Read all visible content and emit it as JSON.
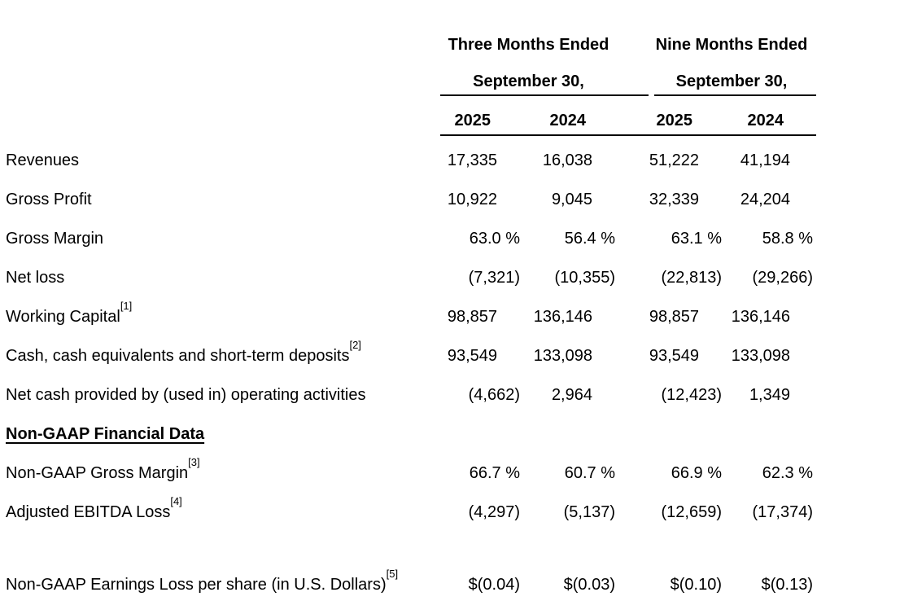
{
  "table": {
    "header": {
      "groups": [
        {
          "period": "Three Months Ended",
          "date": "September 30,",
          "years": [
            "2025",
            "2024"
          ]
        },
        {
          "period": "Nine Months Ended",
          "date": "September 30,",
          "years": [
            "2025",
            "2024"
          ]
        }
      ]
    },
    "rows": [
      {
        "label": "Revenues",
        "sup": "",
        "style": "normal",
        "values": [
          "17,335",
          "16,038",
          "51,222",
          "41,194"
        ]
      },
      {
        "label": "Gross Profit",
        "sup": "",
        "style": "normal",
        "values": [
          "10,922",
          "9,045",
          "32,339",
          "24,204"
        ]
      },
      {
        "label": "Gross Margin",
        "sup": "",
        "style": "normal",
        "values": [
          "63.0 %",
          "56.4 %",
          "63.1 %",
          "58.8 %"
        ]
      },
      {
        "label": "Net loss",
        "sup": "",
        "style": "normal",
        "values": [
          "(7,321)",
          "(10,355)",
          "(22,813)",
          "(29,266)"
        ]
      },
      {
        "label": "Working Capital",
        "sup": "[1]",
        "style": "normal",
        "values": [
          "98,857",
          "136,146",
          "98,857",
          "136,146"
        ]
      },
      {
        "label": "Cash, cash equivalents and short-term deposits",
        "sup": "[2]",
        "style": "normal",
        "values": [
          "93,549",
          "133,098",
          "93,549",
          "133,098"
        ]
      },
      {
        "label": "Net cash provided by (used in) operating activities",
        "sup": "",
        "style": "normal",
        "values": [
          "(4,662)",
          "2,964",
          "(12,423)",
          "1,349"
        ]
      },
      {
        "label": "Non-GAAP Financial Data",
        "sup": "",
        "style": "section",
        "values": [
          "",
          "",
          "",
          ""
        ]
      },
      {
        "label": "Non-GAAP Gross Margin",
        "sup": "[3]",
        "style": "normal",
        "values": [
          "66.7 %",
          "60.7 %",
          "66.9 %",
          "62.3 %"
        ]
      },
      {
        "label": "Adjusted EBITDA Loss",
        "sup": "[4]",
        "style": "normal",
        "values": [
          "(4,297)",
          "(5,137)",
          "(12,659)",
          "(17,374)"
        ]
      },
      {
        "label": "",
        "sup": "",
        "style": "spacer",
        "values": [
          "",
          "",
          "",
          ""
        ]
      },
      {
        "label": "Non-GAAP Earnings Loss per share (in U.S. Dollars)",
        "sup": "[5]",
        "style": "normal",
        "values": [
          "$(0.04)",
          "$(0.03)",
          "$(0.10)",
          "$(0.13)"
        ]
      }
    ]
  }
}
